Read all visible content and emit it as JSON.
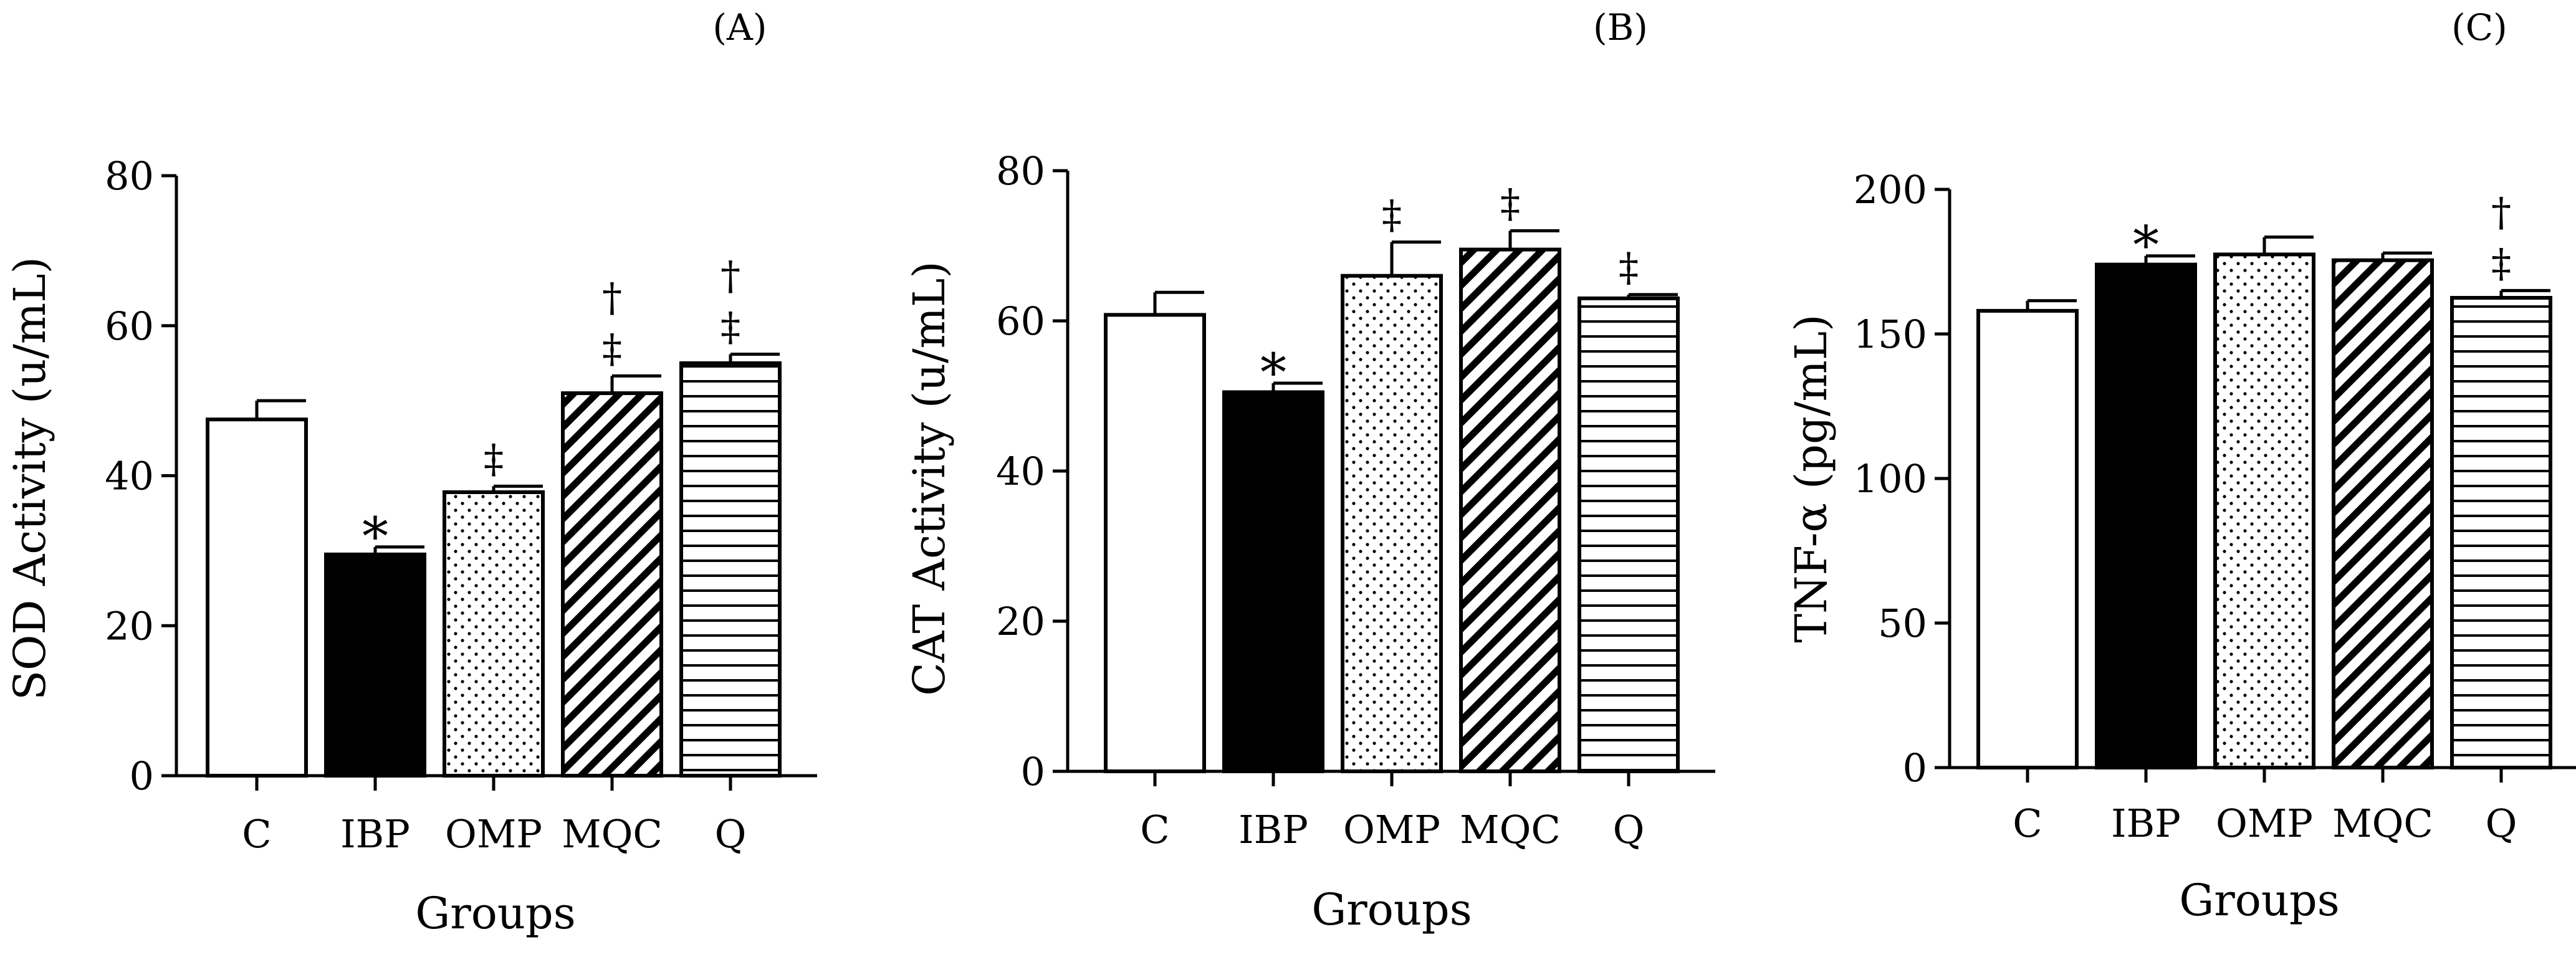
{
  "chart_data": [
    {
      "type": "bar",
      "panel_label": "(A)",
      "xlabel": "Groups",
      "ylabel": "SOD Activity (u/mL)",
      "ylim": [
        0,
        80
      ],
      "yticks": [
        0,
        20,
        40,
        60,
        80
      ],
      "categories": [
        "C",
        "IBP",
        "OMP",
        "MQC",
        "Q"
      ],
      "patterns": [
        "white",
        "black",
        "dots",
        "diagonal",
        "horizontal"
      ],
      "values": [
        47.5,
        29.5,
        37.8,
        51,
        55
      ],
      "errors": [
        2.5,
        1.0,
        0.8,
        2.3,
        1.2
      ],
      "annotations": [
        [],
        [
          "*"
        ],
        [
          "‡"
        ],
        [
          "‡",
          "†"
        ],
        [
          "‡",
          "†"
        ]
      ]
    },
    {
      "type": "bar",
      "panel_label": "(B)",
      "xlabel": "Groups",
      "ylabel": "CAT Activity  (u/mL)",
      "ylim": [
        0,
        80
      ],
      "yticks": [
        0,
        20,
        40,
        60,
        80
      ],
      "categories": [
        "C",
        "IBP",
        "OMP",
        "MQC",
        "Q"
      ],
      "patterns": [
        "white",
        "black",
        "dots",
        "diagonal",
        "horizontal"
      ],
      "values": [
        60.8,
        50.5,
        66,
        69.5,
        63
      ],
      "errors": [
        3.0,
        1.2,
        4.5,
        2.5,
        0.5
      ],
      "annotations": [
        [],
        [
          "*"
        ],
        [
          "‡"
        ],
        [
          "‡"
        ],
        [
          "‡"
        ]
      ]
    },
    {
      "type": "bar",
      "panel_label": "(C)",
      "xlabel": "Groups",
      "ylabel": "TNF-α (pg/mL)",
      "ylim": [
        0,
        200
      ],
      "yticks": [
        0,
        50,
        100,
        150,
        200
      ],
      "categories": [
        "C",
        "IBP",
        "OMP",
        "MQC",
        "Q"
      ],
      "patterns": [
        "white",
        "black",
        "dots",
        "diagonal",
        "horizontal"
      ],
      "values": [
        158,
        174,
        177.5,
        175.5,
        162.5
      ],
      "errors": [
        3.5,
        3.0,
        6.0,
        2.5,
        2.5
      ],
      "annotations": [
        [],
        [
          "*"
        ],
        [],
        [],
        [
          "‡",
          "†"
        ]
      ]
    }
  ]
}
